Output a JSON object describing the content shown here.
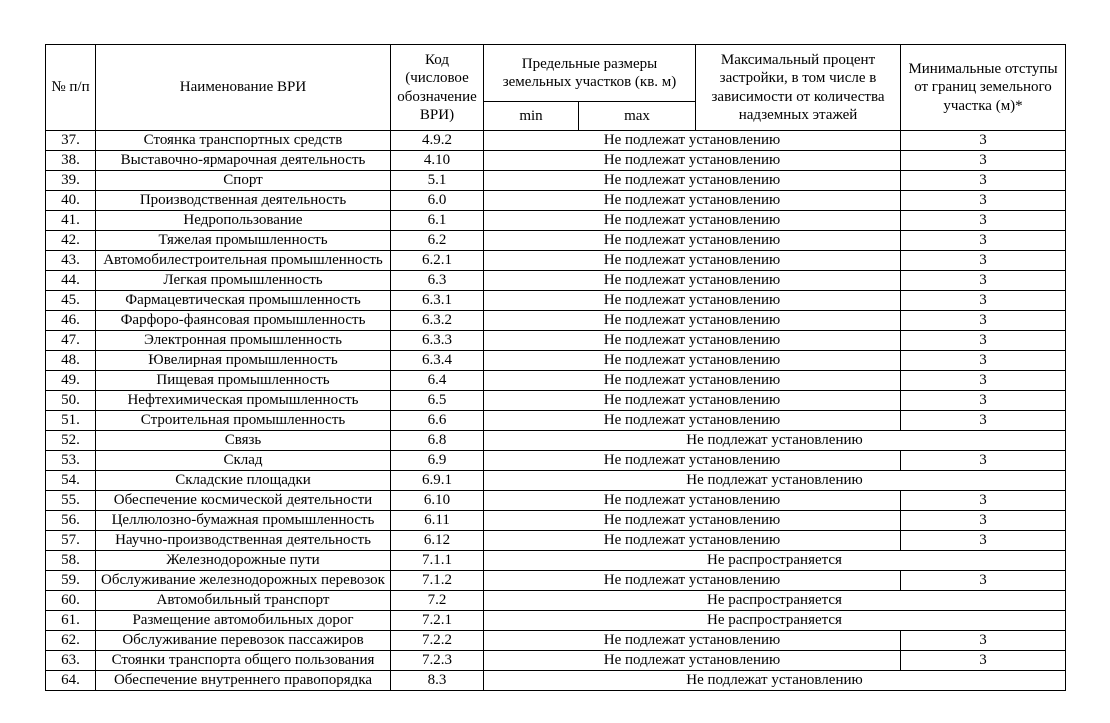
{
  "page": {
    "background": "#ffffff",
    "text_color": "#000000"
  },
  "table": {
    "header": {
      "num": "№ п/п",
      "name": "Наименование ВРИ",
      "code": "Код (числовое обозначение ВРИ)",
      "limits": "Предельные размеры земельных участков (кв. м)",
      "min": "min",
      "max": "max",
      "max_percent": "Максимальный процент застройки, в том числе в зависимости от количества надземных этажей",
      "min_offset": "Минимальные отступы от границ земельного участка (м)*"
    },
    "rows": [
      {
        "num": "37.",
        "name": "Стоянка транспортных средств",
        "code": "4.9.2",
        "value": "Не подлежат установлению",
        "offset": "3"
      },
      {
        "num": "38.",
        "name": "Выставочно-ярмарочная деятельность",
        "code": "4.10",
        "value": "Не подлежат установлению",
        "offset": "3"
      },
      {
        "num": "39.",
        "name": "Спорт",
        "code": "5.1",
        "value": "Не подлежат установлению",
        "offset": "3"
      },
      {
        "num": "40.",
        "name": "Производственная деятельность",
        "code": "6.0",
        "value": "Не подлежат установлению",
        "offset": "3"
      },
      {
        "num": "41.",
        "name": "Недропользование",
        "code": "6.1",
        "value": "Не подлежат установлению",
        "offset": "3"
      },
      {
        "num": "42.",
        "name": "Тяжелая промышленность",
        "code": "6.2",
        "value": "Не подлежат установлению",
        "offset": "3"
      },
      {
        "num": "43.",
        "name": "Автомобилестроительная промышленность",
        "code": "6.2.1",
        "value": "Не подлежат установлению",
        "offset": "3"
      },
      {
        "num": "44.",
        "name": "Легкая промышленность",
        "code": "6.3",
        "value": "Не подлежат установлению",
        "offset": "3"
      },
      {
        "num": "45.",
        "name": "Фармацевтическая промышленность",
        "code": "6.3.1",
        "value": "Не подлежат установлению",
        "offset": "3"
      },
      {
        "num": "46.",
        "name": "Фарфоро-фаянсовая промышленность",
        "code": "6.3.2",
        "value": "Не подлежат установлению",
        "offset": "3"
      },
      {
        "num": "47.",
        "name": "Электронная промышленность",
        "code": "6.3.3",
        "value": "Не подлежат установлению",
        "offset": "3"
      },
      {
        "num": "48.",
        "name": "Ювелирная промышленность",
        "code": "6.3.4",
        "value": "Не подлежат установлению",
        "offset": "3"
      },
      {
        "num": "49.",
        "name": "Пищевая промышленность",
        "code": "6.4",
        "value": "Не подлежат установлению",
        "offset": "3"
      },
      {
        "num": "50.",
        "name": "Нефтехимическая промышленность",
        "code": "6.5",
        "value": "Не подлежат установлению",
        "offset": "3"
      },
      {
        "num": "51.",
        "name": "Строительная промышленность",
        "code": "6.6",
        "value": "Не подлежат установлению",
        "offset": "3"
      },
      {
        "num": "52.",
        "name": "Связь",
        "code": "6.8",
        "value": "Не подлежат установлению",
        "full": true
      },
      {
        "num": "53.",
        "name": "Склад",
        "code": "6.9",
        "value": "Не подлежат установлению",
        "offset": "3"
      },
      {
        "num": "54.",
        "name": "Складские площадки",
        "code": "6.9.1",
        "value": "Не подлежат установлению",
        "full": true
      },
      {
        "num": "55.",
        "name": "Обеспечение космической деятельности",
        "code": "6.10",
        "value": "Не подлежат установлению",
        "offset": "3"
      },
      {
        "num": "56.",
        "name": "Целлюлозно-бумажная промышленность",
        "code": "6.11",
        "value": "Не подлежат установлению",
        "offset": "3"
      },
      {
        "num": "57.",
        "name": "Научно-производственная деятельность",
        "code": "6.12",
        "value": "Не подлежат установлению",
        "offset": "3"
      },
      {
        "num": "58.",
        "name": "Железнодорожные пути",
        "code": "7.1.1",
        "value": "Не распространяется",
        "full": true
      },
      {
        "num": "59.",
        "name": "Обслуживание железнодорожных перевозок",
        "code": "7.1.2",
        "value": "Не подлежат установлению",
        "offset": "3"
      },
      {
        "num": "60.",
        "name": "Автомобильный транспорт",
        "code": "7.2",
        "value": "Не распространяется",
        "full": true
      },
      {
        "num": "61.",
        "name": "Размещение автомобильных дорог",
        "code": "7.2.1",
        "value": "Не распространяется",
        "full": true
      },
      {
        "num": "62.",
        "name": "Обслуживание перевозок пассажиров",
        "code": "7.2.2",
        "value": "Не подлежат установлению",
        "offset": "3"
      },
      {
        "num": "63.",
        "name": "Стоянки транспорта общего пользования",
        "code": "7.2.3",
        "value": "Не подлежат установлению",
        "offset": "3"
      },
      {
        "num": "64.",
        "name": "Обеспечение внутреннего правопорядка",
        "code": "8.3",
        "value": "Не подлежат установлению",
        "full": true
      }
    ]
  }
}
